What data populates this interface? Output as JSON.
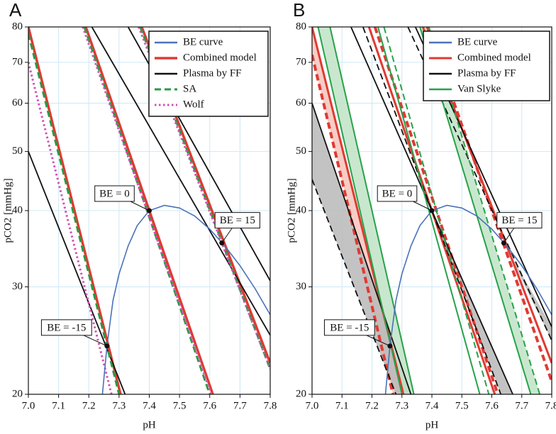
{
  "chart_data": [
    {
      "type": "line",
      "title": "A",
      "x_label": "pH",
      "y_label": "pCO2 [mmHg]",
      "xlim": [
        7.0,
        7.8
      ],
      "ylim": [
        20,
        80
      ],
      "y_scale": "log",
      "grid": true,
      "legend": "upper right",
      "xticks": [
        {
          "value": 7.0,
          "label": "7.0"
        },
        7.1,
        7.2,
        7.3,
        7.4,
        7.5,
        7.6,
        7.7,
        7.8
      ],
      "yticks": [
        20,
        30,
        40,
        50,
        60,
        70,
        80
      ],
      "series": [
        {
          "name": "BE curve",
          "color": "#4a72b8",
          "style": "solid",
          "lines": [
            {
              "x": [
                7.245,
                7.26,
                7.28,
                7.3,
                7.33,
                7.36,
                7.4,
                7.45,
                7.5,
                7.55,
                7.6,
                7.65,
                7.7,
                7.75,
                7.8
              ],
              "y": [
                20,
                24,
                28.5,
                31.5,
                35,
                37.8,
                40,
                40.8,
                40.4,
                39.2,
                37.3,
                35,
                32.5,
                29.8,
                27
              ]
            }
          ]
        },
        {
          "name": "Combined model",
          "color": "#e03a32",
          "style": "solid",
          "lines": [
            {
              "x": [
                7.0,
                7.305
              ],
              "y": [
                80,
                20
              ]
            },
            {
              "x": [
                7.19,
                7.61
              ],
              "y": [
                80,
                20
              ]
            },
            {
              "x": [
                7.375,
                7.8
              ],
              "y": [
                80,
                22.5
              ]
            }
          ]
        },
        {
          "name": "Plasma by FF",
          "color": "#111111",
          "style": "solid",
          "lines": [
            {
              "x": [
                7.0,
                7.32
              ],
              "y": [
                50,
                20
              ]
            },
            {
              "x": [
                7.21,
                7.8
              ],
              "y": [
                80,
                25
              ]
            },
            {
              "x": [
                7.33,
                7.8
              ],
              "y": [
                80,
                30.7
              ]
            }
          ]
        },
        {
          "name": "SA",
          "color": "#2a9a44",
          "style": "dashed",
          "lines": [
            {
              "x": [
                7.0,
                7.3
              ],
              "y": [
                78,
                20
              ]
            },
            {
              "x": [
                7.185,
                7.6
              ],
              "y": [
                80,
                20
              ]
            },
            {
              "x": [
                7.37,
                7.8
              ],
              "y": [
                80,
                22
              ]
            }
          ]
        },
        {
          "name": "Wolf",
          "color": "#d44fb4",
          "style": "dotted",
          "lines": [
            {
              "x": [
                7.0,
                7.275
              ],
              "y": [
                70,
                20
              ]
            },
            {
              "x": [
                7.18,
                7.605
              ],
              "y": [
                80,
                20
              ]
            },
            {
              "x": [
                7.365,
                7.8
              ],
              "y": [
                80,
                22
              ]
            }
          ]
        }
      ],
      "annotations": [
        {
          "text": "BE = 0",
          "x": 7.4,
          "y": 40
        },
        {
          "text": "BE = 15",
          "x": 7.64,
          "y": 35.4
        },
        {
          "text": "BE = -15",
          "x": 7.26,
          "y": 24
        }
      ]
    },
    {
      "type": "line",
      "title": "B",
      "x_label": "pH",
      "y_label": "pCO2 [mmHg]",
      "xlim": [
        7.0,
        7.8
      ],
      "ylim": [
        20,
        80
      ],
      "y_scale": "log",
      "grid": true,
      "legend": "upper right",
      "xticks": [
        {
          "value": 7.0,
          "label": "7.0"
        },
        7.1,
        7.2,
        7.3,
        7.4,
        7.5,
        7.6,
        7.7,
        7.8
      ],
      "yticks": [
        20,
        30,
        40,
        50,
        60,
        70,
        80
      ],
      "series": [
        {
          "name": "BE curve",
          "color": "#4a72b8",
          "style": "solid",
          "lines": [
            {
              "x": [
                7.245,
                7.26,
                7.28,
                7.3,
                7.33,
                7.36,
                7.4,
                7.45,
                7.5,
                7.55,
                7.6,
                7.65,
                7.7,
                7.75,
                7.8
              ],
              "y": [
                20,
                24,
                28.5,
                31.5,
                35,
                37.8,
                40,
                40.8,
                40.4,
                39.2,
                37.3,
                35,
                32.5,
                29.8,
                27
              ]
            }
          ]
        },
        {
          "name": "Combined model",
          "color": "#e03a32",
          "style": "solid",
          "band_color": "#f6c4bc",
          "bands": [
            {
              "x": [
                7.0,
                7.0,
                7.27,
                7.305
              ],
              "y": [
                80,
                72,
                20,
                20
              ]
            }
          ],
          "lines": [
            {
              "x": [
                7.0,
                7.305
              ],
              "y": [
                80,
                20
              ]
            },
            {
              "x": [
                7.0,
                7.27
              ],
              "y": [
                72,
                20
              ],
              "style": "dashed"
            },
            {
              "x": [
                7.19,
                7.61
              ],
              "y": [
                80,
                20
              ]
            },
            {
              "x": [
                7.21,
                7.62
              ],
              "y": [
                80,
                20
              ],
              "style": "dashed"
            },
            {
              "x": [
                7.37,
                7.8
              ],
              "y": [
                80,
                22.5
              ]
            },
            {
              "x": [
                7.385,
                7.8
              ],
              "y": [
                80,
                21
              ],
              "style": "dashed"
            }
          ]
        },
        {
          "name": "Plasma by FF",
          "color": "#111111",
          "style": "solid",
          "band_color": "#b8b8b8",
          "bands": [
            {
              "x": [
                7.0,
                7.0,
                7.28,
                7.33
              ],
              "y": [
                60,
                45,
                20,
                20
              ]
            },
            {
              "x": [
                7.4,
                7.63,
                7.67
              ],
              "y": [
                40,
                20,
                20
              ]
            },
            {
              "x": [
                7.64,
                7.8,
                7.8
              ],
              "y": [
                35.4,
                24.5,
                25.8
              ]
            }
          ],
          "lines": [
            {
              "x": [
                7.0,
                7.33
              ],
              "y": [
                60,
                20
              ]
            },
            {
              "x": [
                7.0,
                7.28
              ],
              "y": [
                45,
                20
              ],
              "style": "dashed"
            },
            {
              "x": [
                7.13,
                7.67
              ],
              "y": [
                80,
                20
              ]
            },
            {
              "x": [
                7.17,
                7.63
              ],
              "y": [
                80,
                20
              ],
              "style": "dashed"
            },
            {
              "x": [
                7.345,
                7.8
              ],
              "y": [
                80,
                25.8
              ]
            },
            {
              "x": [
                7.32,
                7.8
              ],
              "y": [
                80,
                24.5
              ],
              "style": "dashed"
            }
          ]
        },
        {
          "name": "Van Slyke",
          "color": "#27a24a",
          "style": "solid",
          "band_color": "#bfe3c6",
          "bands": [
            {
              "x": [
                7.02,
                7.06,
                7.34,
                7.3
              ],
              "y": [
                80,
                80,
                20,
                20
              ]
            },
            {
              "x": [
                7.36,
                7.39,
                7.76,
                7.73
              ],
              "y": [
                80,
                80,
                20,
                20
              ]
            }
          ],
          "lines": [
            {
              "x": [
                7.02,
                7.3
              ],
              "y": [
                80,
                20
              ]
            },
            {
              "x": [
                7.06,
                7.34
              ],
              "y": [
                80,
                20
              ]
            },
            {
              "x": [
                7.22,
                7.56
              ],
              "y": [
                80,
                20
              ]
            },
            {
              "x": [
                7.24,
                7.59
              ],
              "y": [
                80,
                20
              ],
              "style": "dashed"
            },
            {
              "x": [
                7.36,
                7.73
              ],
              "y": [
                80,
                20
              ]
            },
            {
              "x": [
                7.39,
                7.76
              ],
              "y": [
                80,
                20
              ],
              "style": "dashed"
            }
          ]
        }
      ],
      "annotations": [
        {
          "text": "BE = 0",
          "x": 7.4,
          "y": 40
        },
        {
          "text": "BE = 15",
          "x": 7.64,
          "y": 35.4
        },
        {
          "text": "BE = -15",
          "x": 7.26,
          "y": 24
        }
      ]
    }
  ]
}
